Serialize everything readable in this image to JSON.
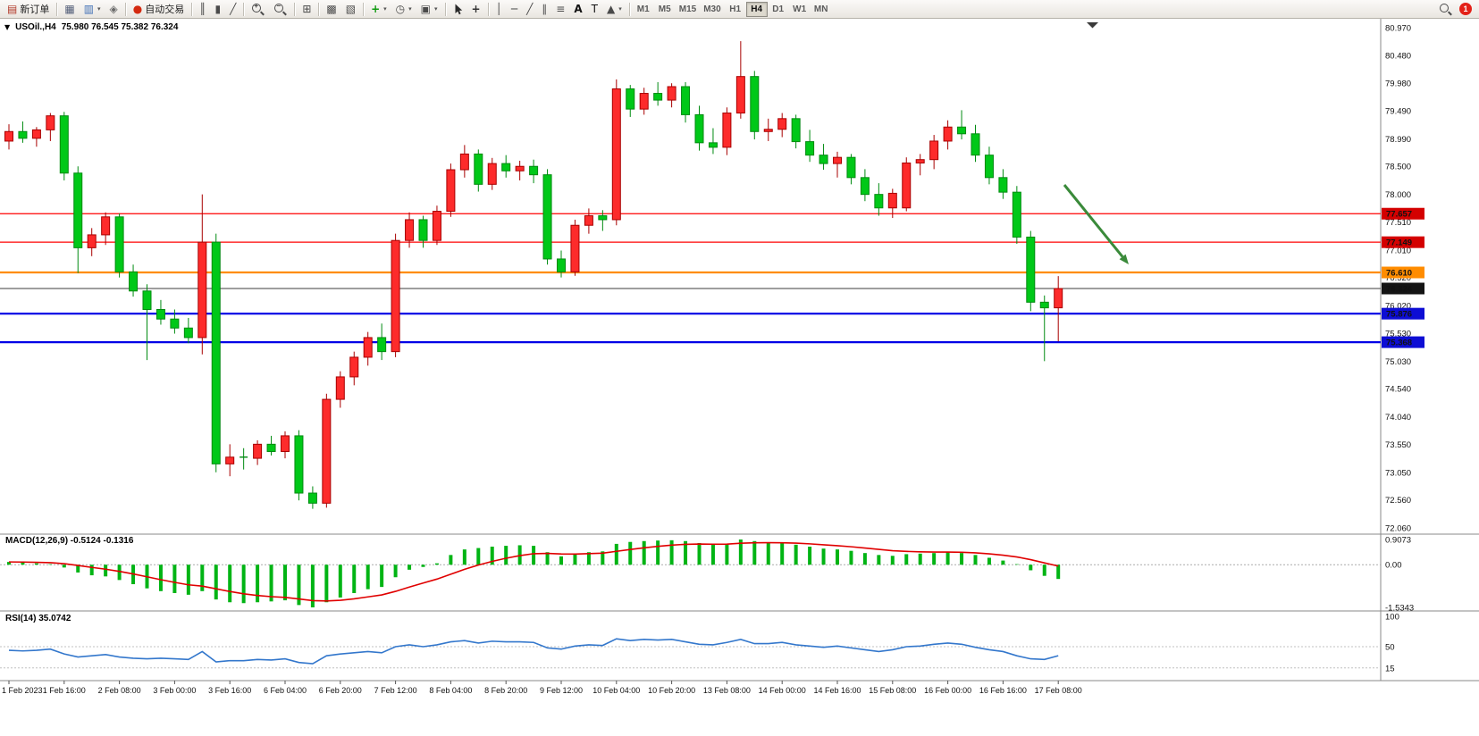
{
  "toolbar": {
    "groups": [
      {
        "items": [
          {
            "name": "new-order",
            "kind": "labeled",
            "glyph": "▤",
            "glyph_color": "#b23a2a",
            "label": "新订单"
          }
        ]
      },
      {
        "items": [
          {
            "name": "new-chart",
            "glyph": "▦",
            "color": "#55607a"
          },
          {
            "name": "profiles",
            "glyph": "▥",
            "color": "#3f6fb5",
            "dd": true
          },
          {
            "name": "navigator",
            "glyph": "◈",
            "color": "#6a6a6a"
          }
        ]
      },
      {
        "items": [
          {
            "name": "autotrading",
            "kind": "labeled",
            "glyph": "●",
            "glyph_color": "#d42a10",
            "label": "自动交易"
          }
        ]
      },
      {
        "items": [
          {
            "name": "bar-chart-type",
            "glyph": "║"
          },
          {
            "name": "candlestick-type",
            "glyph": "▮"
          },
          {
            "name": "line-chart-type",
            "glyph": "╱"
          }
        ]
      },
      {
        "items": [
          {
            "name": "zoom-in",
            "kind": "mag",
            "sign": "+"
          },
          {
            "name": "zoom-out",
            "kind": "mag",
            "sign": "−"
          }
        ]
      },
      {
        "items": [
          {
            "name": "t ile-windows",
            "glyph": "⊞"
          }
        ]
      },
      {
        "items": [
          {
            "name": "arrange-windows",
            "glyph": "▩"
          },
          {
            "name": "chart-list",
            "glyph": "▧"
          }
        ]
      },
      {
        "items": [
          {
            "name": "add-indicator",
            "glyph": "+",
            "glyph_color": "#0f9a0f",
            "bold": true,
            "dd": true
          },
          {
            "name": "periods",
            "glyph": "◷",
            "dd": true
          },
          {
            "name": "template-image",
            "glyph": "▣",
            "dd": true
          }
        ]
      },
      {
        "items": [
          {
            "name": "cursor",
            "kind": "cursor"
          },
          {
            "name": "crosshair",
            "glyph": "+",
            "color": "#333",
            "bold": true
          }
        ]
      },
      {
        "items": [
          {
            "name": "vertical-line",
            "glyph": "│"
          },
          {
            "name": "horizontal-line",
            "glyph": "─"
          },
          {
            "name": "trendline",
            "glyph": "╱"
          },
          {
            "name": "channel",
            "glyph": "∥"
          },
          {
            "name": "fibonacci",
            "glyph": "≡"
          },
          {
            "name": "text",
            "glyph": "A",
            "color": "#111",
            "bold": true
          },
          {
            "name": "text-label",
            "glyph": "T",
            "color": "#111"
          },
          {
            "name": "shapes",
            "glyph": "▲",
            "dd": true
          }
        ]
      }
    ],
    "timeframes": {
      "options": [
        "M1",
        "M5",
        "M15",
        "M30",
        "H1",
        "H4",
        "D1",
        "W1",
        "MN"
      ],
      "active": "H4"
    },
    "right": {
      "badge": "1"
    }
  },
  "header": {
    "collapse_glyph": "▼",
    "symbol_period": "USOil.,H4",
    "ohlc": "75.980 76.545 75.382 76.324"
  },
  "chart_data": [
    {
      "type": "candlestick",
      "title": "USOil.,H4",
      "up_color": "#fd2b2b",
      "up_stroke": "#a80000",
      "down_color": "#00c818",
      "down_stroke": "#008a10",
      "y_range": [
        72.06,
        80.97
      ],
      "y_axis_labels": [
        "80.970",
        "80.480",
        "79.980",
        "79.490",
        "78.990",
        "78.500",
        "78.000",
        "77.510",
        "77.010",
        "76.520",
        "76.020",
        "75.530",
        "75.030",
        "74.540",
        "74.040",
        "73.550",
        "73.050",
        "72.560",
        "72.060"
      ],
      "x_label_every": 4,
      "x_labels": [
        "1 Feb 2023",
        "1 Feb 16:00",
        "2 Feb 08:00",
        "3 Feb 00:00",
        "3 Feb 16:00",
        "6 Feb 04:00",
        "6 Feb 20:00",
        "7 Feb 12:00",
        "8 Feb 04:00",
        "8 Feb 20:00",
        "9 Feb 12:00",
        "10 Feb 04:00",
        "10 Feb 20:00",
        "13 Feb 08:00",
        "14 Feb 00:00",
        "14 Feb 16:00",
        "15 Feb 08:00",
        "16 Feb 00:00",
        "16 Feb 16:00",
        "17 Feb 08:00"
      ],
      "candles": [
        [
          78.95,
          79.25,
          78.8,
          79.12
        ],
        [
          79.12,
          79.3,
          78.92,
          79.0
        ],
        [
          79.0,
          79.2,
          78.85,
          79.15
        ],
        [
          79.15,
          79.45,
          78.95,
          79.4
        ],
        [
          79.4,
          79.47,
          78.25,
          78.38
        ],
        [
          78.38,
          78.5,
          76.6,
          77.05
        ],
        [
          77.05,
          77.4,
          76.9,
          77.28
        ],
        [
          77.28,
          77.68,
          77.1,
          77.6
        ],
        [
          77.6,
          77.66,
          76.52,
          76.62
        ],
        [
          76.62,
          76.75,
          76.18,
          76.28
        ],
        [
          76.28,
          76.4,
          75.05,
          75.95
        ],
        [
          75.95,
          76.12,
          75.68,
          75.78
        ],
        [
          75.78,
          75.95,
          75.52,
          75.62
        ],
        [
          75.62,
          75.8,
          75.35,
          75.45
        ],
        [
          75.45,
          78.0,
          75.15,
          77.15
        ],
        [
          77.15,
          77.3,
          73.05,
          73.2
        ],
        [
          73.2,
          73.55,
          72.98,
          73.32
        ],
        [
          73.32,
          73.48,
          73.1,
          73.3
        ],
        [
          73.3,
          73.62,
          73.18,
          73.55
        ],
        [
          73.55,
          73.7,
          73.35,
          73.42
        ],
        [
          73.42,
          73.78,
          73.3,
          73.7
        ],
        [
          73.7,
          73.8,
          72.55,
          72.68
        ],
        [
          72.68,
          72.8,
          72.4,
          72.5
        ],
        [
          72.5,
          74.45,
          72.42,
          74.35
        ],
        [
          74.35,
          74.85,
          74.2,
          74.75
        ],
        [
          74.75,
          75.2,
          74.6,
          75.1
        ],
        [
          75.1,
          75.55,
          74.95,
          75.45
        ],
        [
          75.45,
          75.7,
          75.05,
          75.2
        ],
        [
          75.2,
          77.3,
          75.1,
          77.18
        ],
        [
          77.18,
          77.68,
          77.05,
          77.55
        ],
        [
          77.55,
          77.62,
          77.05,
          77.18
        ],
        [
          77.18,
          77.8,
          77.1,
          77.7
        ],
        [
          77.7,
          78.55,
          77.6,
          78.44
        ],
        [
          78.44,
          78.88,
          78.3,
          78.72
        ],
        [
          78.72,
          78.8,
          78.05,
          78.18
        ],
        [
          78.18,
          78.65,
          78.08,
          78.55
        ],
        [
          78.55,
          78.7,
          78.3,
          78.42
        ],
        [
          78.42,
          78.6,
          78.25,
          78.5
        ],
        [
          78.5,
          78.62,
          78.2,
          78.35
        ],
        [
          78.35,
          78.45,
          76.75,
          76.85
        ],
        [
          76.85,
          77.0,
          76.52,
          76.62
        ],
        [
          76.62,
          77.55,
          76.55,
          77.45
        ],
        [
          77.45,
          77.75,
          77.3,
          77.62
        ],
        [
          77.62,
          77.72,
          77.35,
          77.55
        ],
        [
          77.55,
          80.05,
          77.45,
          79.88
        ],
        [
          79.88,
          79.95,
          79.38,
          79.52
        ],
        [
          79.52,
          79.9,
          79.42,
          79.8
        ],
        [
          79.8,
          80.0,
          79.58,
          79.68
        ],
        [
          79.68,
          79.98,
          79.55,
          79.92
        ],
        [
          79.92,
          80.0,
          79.28,
          79.42
        ],
        [
          79.42,
          79.58,
          78.78,
          78.92
        ],
        [
          78.92,
          79.18,
          78.72,
          78.84
        ],
        [
          78.84,
          79.55,
          78.7,
          79.45
        ],
        [
          79.45,
          80.73,
          79.35,
          80.1
        ],
        [
          80.1,
          80.2,
          78.98,
          79.12
        ],
        [
          79.12,
          79.35,
          78.95,
          79.16
        ],
        [
          79.16,
          79.45,
          79.02,
          79.35
        ],
        [
          79.35,
          79.42,
          78.82,
          78.94
        ],
        [
          78.94,
          79.15,
          78.58,
          78.7
        ],
        [
          78.7,
          78.9,
          78.44,
          78.55
        ],
        [
          78.55,
          78.76,
          78.3,
          78.66
        ],
        [
          78.66,
          78.72,
          78.18,
          78.3
        ],
        [
          78.3,
          78.45,
          77.88,
          78.0
        ],
        [
          78.0,
          78.2,
          77.62,
          77.76
        ],
        [
          77.76,
          78.1,
          77.58,
          78.02
        ],
        [
          77.76,
          78.66,
          77.7,
          78.56
        ],
        [
          78.56,
          78.72,
          78.34,
          78.62
        ],
        [
          78.62,
          79.06,
          78.45,
          78.95
        ],
        [
          78.95,
          79.32,
          78.8,
          79.2
        ],
        [
          79.2,
          79.5,
          78.98,
          79.08
        ],
        [
          79.08,
          79.24,
          78.58,
          78.7
        ],
        [
          78.7,
          78.85,
          78.18,
          78.3
        ],
        [
          78.3,
          78.45,
          77.92,
          78.04
        ],
        [
          78.04,
          78.15,
          77.12,
          77.24
        ],
        [
          77.24,
          77.35,
          75.92,
          76.08
        ],
        [
          76.08,
          76.2,
          75.03,
          75.98
        ],
        [
          75.98,
          76.545,
          75.382,
          76.324
        ]
      ],
      "hlines": [
        {
          "price": 77.657,
          "label": "77.657",
          "color": "#ff0000",
          "width": 1.3,
          "label_bg": "#d40000"
        },
        {
          "price": 77.149,
          "label": "77.149",
          "color": "#ff0000",
          "width": 1.3,
          "label_bg": "#d40000"
        },
        {
          "price": 76.61,
          "label": "76.610",
          "color": "#ff8c00",
          "width": 2.2,
          "label_bg": "#ff8c00"
        },
        {
          "price": 76.324,
          "label": "76.324",
          "color": "#3c3c3c",
          "width": 1.1,
          "label_bg": "#141414"
        },
        {
          "price": 75.876,
          "label": "75.876",
          "color": "#0000e6",
          "width": 2.2,
          "label_bg": "#0d0dd4"
        },
        {
          "price": 75.368,
          "label": "75.368",
          "color": "#0000e6",
          "width": 2.2,
          "label_bg": "#0d0dd4"
        }
      ],
      "arrow": {
        "from": [
          1191,
          207
        ],
        "to": [
          1263,
          296
        ],
        "color": "#3a8a3a"
      }
    },
    {
      "type": "macd_histogram",
      "label": "MACD(12,26,9) -0.5124 -0.1316",
      "bar_color": "#00b414",
      "signal_color": "#e00000",
      "signal_period": 9,
      "range": [
        -1.5343,
        0.9073
      ],
      "axis_labels": [
        "0.9073",
        "0.00",
        "-1.5343"
      ],
      "values": [
        0.1,
        0.08,
        0.05,
        0.02,
        -0.1,
        -0.28,
        -0.38,
        -0.42,
        -0.55,
        -0.7,
        -0.85,
        -0.95,
        -1.02,
        -1.08,
        -0.95,
        -1.25,
        -1.35,
        -1.38,
        -1.35,
        -1.32,
        -1.28,
        -1.45,
        -1.5343,
        -1.35,
        -1.18,
        -1.02,
        -0.88,
        -0.8,
        -0.45,
        -0.18,
        -0.08,
        0.05,
        0.35,
        0.55,
        0.6,
        0.65,
        0.68,
        0.7,
        0.68,
        0.45,
        0.3,
        0.38,
        0.45,
        0.48,
        0.75,
        0.82,
        0.85,
        0.87,
        0.88,
        0.85,
        0.78,
        0.72,
        0.75,
        0.9073,
        0.85,
        0.8,
        0.78,
        0.72,
        0.65,
        0.58,
        0.55,
        0.5,
        0.42,
        0.35,
        0.32,
        0.38,
        0.4,
        0.42,
        0.45,
        0.42,
        0.35,
        0.25,
        0.15,
        0.02,
        -0.2,
        -0.4,
        -0.5124
      ]
    },
    {
      "type": "rsi_line",
      "label": "RSI(14) 35.0742",
      "line_color": "#3377cc",
      "range": [
        0,
        100
      ],
      "levels": [
        50,
        15
      ],
      "axis_labels": [
        "100",
        "50",
        "15"
      ],
      "values": [
        44,
        43,
        44,
        46,
        38,
        33,
        35,
        37,
        33,
        31,
        30,
        31,
        30,
        29,
        42,
        25,
        27,
        27,
        29,
        28,
        30,
        24,
        22,
        35,
        38,
        40,
        42,
        40,
        50,
        53,
        50,
        53,
        58,
        60,
        56,
        59,
        58,
        58,
        57,
        48,
        46,
        51,
        53,
        52,
        63,
        60,
        62,
        61,
        62,
        58,
        54,
        53,
        57,
        62,
        55,
        55,
        57,
        53,
        51,
        49,
        51,
        48,
        45,
        42,
        45,
        50,
        51,
        54,
        56,
        54,
        49,
        45,
        42,
        35,
        30,
        29,
        35.07
      ]
    }
  ]
}
